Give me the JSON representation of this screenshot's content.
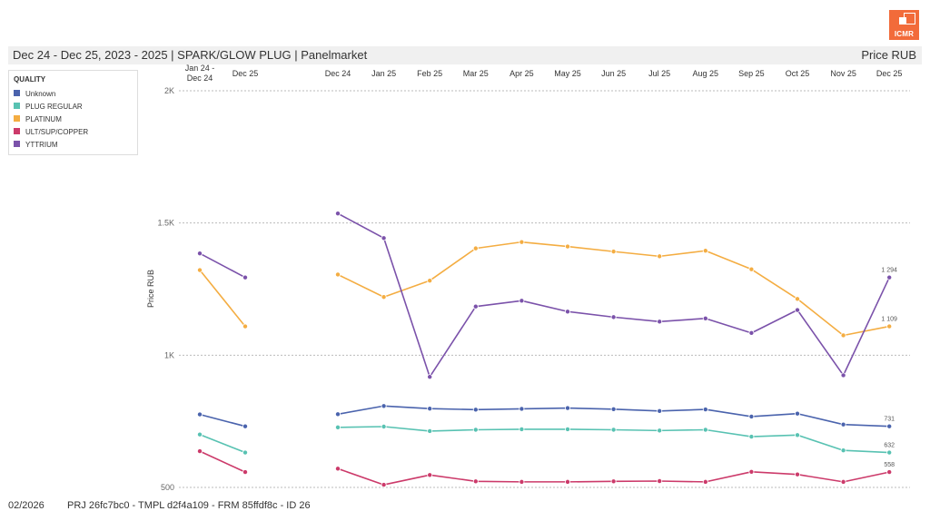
{
  "header": {
    "title": "Dec 24 - Dec 25, 2023 - 2025 | SPARK/GLOW PLUG | Panelmarket",
    "unit_label": "Price RUB",
    "logo_text": "ICMR",
    "logo_color": "#f26b3a"
  },
  "legend": {
    "title": "QUALITY",
    "items": [
      {
        "label": "Unknown",
        "color": "#4a63ad"
      },
      {
        "label": "PLUG REGULAR",
        "color": "#58c2b2"
      },
      {
        "label": "PLATINUM",
        "color": "#f4ad42"
      },
      {
        "label": "ULT/SUP/COPPER",
        "color": "#cc3a6a"
      },
      {
        "label": "YTTRIUM",
        "color": "#7b52aa"
      }
    ]
  },
  "footer": {
    "date": "02/2026",
    "ids": "PRJ 26fc7bc0 - TMPL d2f4a109 - FRM 85ffdf8c - ID 26"
  },
  "chart_data": {
    "type": "line",
    "ylabel": "Price RUB",
    "ylim": [
      500,
      2000
    ],
    "yticks": [
      {
        "value": 2000,
        "label": "2K"
      },
      {
        "value": 1500,
        "label": "1.5K"
      },
      {
        "value": 1000,
        "label": "1K"
      },
      {
        "value": 500,
        "label": "500"
      }
    ],
    "grid": true,
    "legend_position": "top-left",
    "groups": [
      {
        "categories": [
          "Jan 24 - Dec 24",
          "Dec 25"
        ]
      },
      {
        "categories": [
          "Dec 24",
          "Jan 25",
          "Feb 25",
          "Mar 25",
          "Apr 25",
          "May 25",
          "Jun 25",
          "Jul 25",
          "Aug 25",
          "Sep 25",
          "Oct 25",
          "Nov 25",
          "Dec 25"
        ]
      }
    ],
    "series": [
      {
        "name": "Unknown",
        "color": "#4a63ad",
        "values": [
          [
            776,
            731
          ],
          [
            777,
            808,
            798,
            794,
            797,
            800,
            796,
            789,
            795,
            768,
            779,
            738,
            731
          ]
        ],
        "end_label": "731"
      },
      {
        "name": "PLUG REGULAR",
        "color": "#58c2b2",
        "values": [
          [
            700,
            632
          ],
          [
            727,
            730,
            713,
            718,
            720,
            720,
            718,
            715,
            718,
            692,
            698,
            640,
            632
          ]
        ],
        "end_label": "632"
      },
      {
        "name": "PLATINUM",
        "color": "#f4ad42",
        "values": [
          [
            1322,
            1109
          ],
          [
            1305,
            1220,
            1282,
            1404,
            1428,
            1411,
            1392,
            1374,
            1395,
            1325,
            1213,
            1075,
            1109
          ]
        ],
        "end_label": "1 109"
      },
      {
        "name": "ULT/SUP/COPPER",
        "color": "#cc3a6a",
        "values": [
          [
            637,
            558
          ],
          [
            571,
            510,
            547,
            523,
            521,
            521,
            523,
            524,
            521,
            559,
            549,
            521,
            558
          ]
        ],
        "end_label": "558"
      },
      {
        "name": "YTTRIUM",
        "color": "#7b52aa",
        "values": [
          [
            1385,
            1294
          ],
          [
            1536,
            1443,
            918,
            1184,
            1206,
            1165,
            1144,
            1127,
            1139,
            1084,
            1171,
            924,
            1294
          ]
        ],
        "end_label": "1 294"
      }
    ]
  }
}
